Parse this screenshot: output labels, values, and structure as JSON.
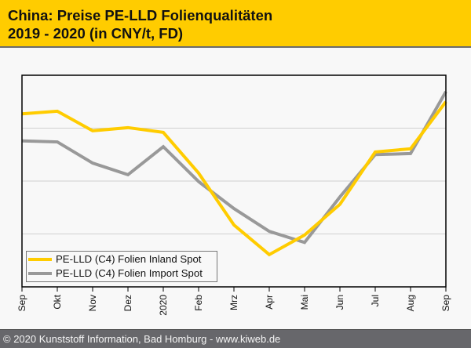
{
  "header": {
    "title_line1": "China: Preise PE-LLD Folienqualitäten",
    "title_line2": "2019 - 2020 (in CNY/t, FD)"
  },
  "footer": {
    "copyright": "© 2020 Kunststoff Information, Bad Homburg - www.kiweb.de"
  },
  "colors": {
    "header_bg": "#ffcc00",
    "footer_bg": "#67676b",
    "inland": "#ffcc00",
    "import": "#999999",
    "grid": "#d0d0d0"
  },
  "chart_data": {
    "type": "line",
    "title": "China: Preise PE-LLD Folienqualitäten 2019 - 2020 (in CNY/t, FD)",
    "xlabel": "",
    "ylabel": "",
    "y_note": "No y-axis values shown; values are relative (normalized to gridline bands 0-4)",
    "ylim": [
      0,
      4
    ],
    "y_gridlines": [
      1,
      2,
      3
    ],
    "grid": true,
    "legend_position": "bottom-left",
    "categories": [
      "Sep",
      "Okt",
      "Nov",
      "Dez",
      "2020",
      "Feb",
      "Mrz",
      "Apr",
      "Mai",
      "Jun",
      "Jul",
      "Aug",
      "Sep"
    ],
    "series": [
      {
        "name": "PE-LLD (C4) Folien Inland Spot",
        "color": "#ffcc00",
        "values": [
          3.27,
          3.32,
          2.95,
          3.01,
          2.92,
          2.15,
          1.17,
          0.61,
          0.98,
          1.56,
          2.55,
          2.61,
          3.5
        ]
      },
      {
        "name": "PE-LLD (C4) Folien Import Spot",
        "color": "#999999",
        "values": [
          2.76,
          2.74,
          2.34,
          2.12,
          2.65,
          1.99,
          1.48,
          1.05,
          0.84,
          1.7,
          2.5,
          2.52,
          3.69
        ]
      }
    ]
  }
}
